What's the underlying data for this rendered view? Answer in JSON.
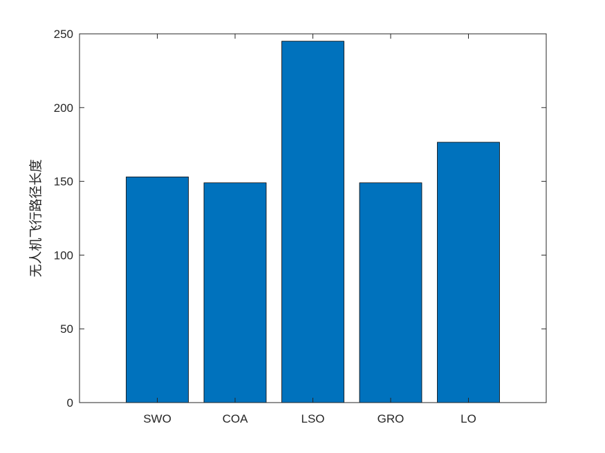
{
  "chart_data": {
    "type": "bar",
    "title": "",
    "xlabel": "",
    "ylabel": "无人机飞行路径长度",
    "categories": [
      "SWO",
      "COA",
      "LSO",
      "GRO",
      "LO"
    ],
    "values": [
      153,
      149,
      245,
      149,
      176.5
    ],
    "ylim": [
      0,
      250
    ],
    "yticks": [
      0,
      50,
      100,
      150,
      200,
      250
    ],
    "bar_color": "#0072BD",
    "grid": false,
    "legend": "none"
  }
}
